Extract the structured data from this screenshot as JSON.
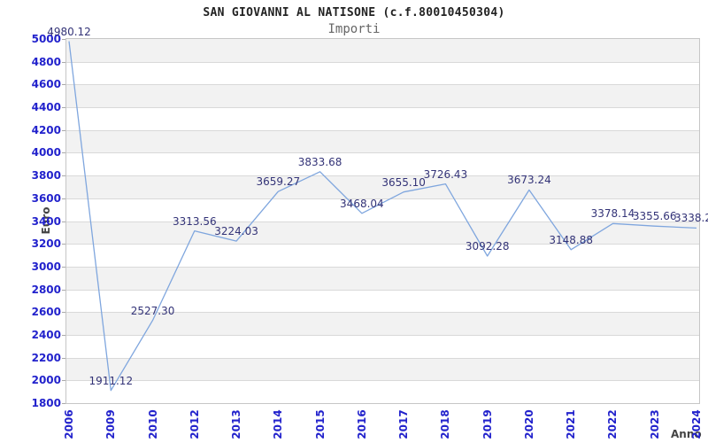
{
  "chart_data": {
    "type": "line",
    "title": "SAN GIOVANNI AL NATISONE (c.f.80010450304)",
    "subtitle": "Importi",
    "xlabel": "Anno",
    "ylabel": "Euro",
    "x": [
      "2006",
      "2009",
      "2010",
      "2012",
      "2013",
      "2014",
      "2015",
      "2016",
      "2017",
      "2018",
      "2019",
      "2020",
      "2021",
      "2022",
      "2023",
      "2024"
    ],
    "series": [
      {
        "name": "Importi",
        "values": [
          4980.12,
          1911.12,
          2527.3,
          3313.56,
          3224.03,
          3659.27,
          3833.68,
          3468.04,
          3655.1,
          3726.43,
          3092.28,
          3673.24,
          3148.88,
          3378.14,
          3355.66,
          3338.2
        ]
      }
    ],
    "point_labels": [
      "4980.12",
      "1911.12",
      "2527.30",
      "3313.56",
      "3224.03",
      "3659.27",
      "3833.68",
      "3468.04",
      "3655.10",
      "3726.43",
      "3092.28",
      "3673.24",
      "3148.88",
      "3378.14",
      "3355.66",
      "3338.2"
    ],
    "ylim": [
      1800,
      5000
    ],
    "ytick_step": 200,
    "grid": true,
    "legend": "none",
    "banded_background": true,
    "colors": {
      "line": "#7fa6de",
      "axis_labels": "#2222cc",
      "point_labels": "#333377",
      "band": "#f2f2f2",
      "gridline": "#d9d9d9",
      "plot_border": "#c6c6c6",
      "title": "#222222",
      "subtitle": "#666666",
      "axis_titles": "#444444"
    }
  }
}
